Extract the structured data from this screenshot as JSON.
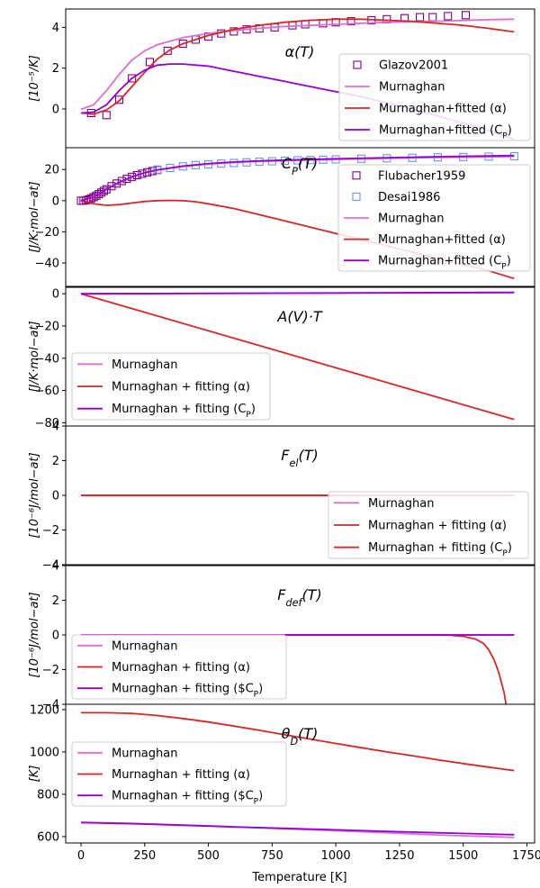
{
  "xlabel": "Temperature [K]",
  "x_ticks": [
    0,
    250,
    500,
    750,
    1000,
    1250,
    1500,
    1750
  ],
  "chart_data": [
    {
      "type": "line",
      "title": "α(T)",
      "ylabel": "[10⁻⁵/K]",
      "xlim": [
        -60,
        1780
      ],
      "ylim": [
        -1.9,
        4.9
      ],
      "y_ticks": [
        0,
        2,
        4
      ],
      "legend_position": "lower-right",
      "legend": [
        "Glazov2001",
        "Murnaghan",
        "Murnaghan+fitted (α)",
        "Murnaghan+fitted (C_P)"
      ],
      "series": [
        {
          "name": "Glazov2001",
          "kind": "markers",
          "color": "#800080",
          "x": [
            40,
            100,
            150,
            200,
            270,
            340,
            400,
            450,
            500,
            550,
            600,
            650,
            700,
            760,
            830,
            880,
            950,
            1000,
            1060,
            1140,
            1200,
            1270,
            1330,
            1380,
            1440,
            1510
          ],
          "y": [
            -0.2,
            -0.3,
            0.45,
            1.5,
            2.3,
            2.85,
            3.2,
            3.4,
            3.55,
            3.7,
            3.8,
            3.9,
            3.95,
            4.0,
            4.1,
            4.15,
            4.2,
            4.25,
            4.3,
            4.35,
            4.4,
            4.45,
            4.5,
            4.5,
            4.55,
            4.6
          ]
        },
        {
          "name": "Murnaghan",
          "kind": "line",
          "color": "#da70d6",
          "x": [
            0,
            50,
            100,
            150,
            200,
            250,
            300,
            400,
            500,
            600,
            700,
            800,
            1000,
            1200,
            1400,
            1600,
            1700
          ],
          "y": [
            -0.02,
            0.2,
            0.9,
            1.7,
            2.4,
            2.85,
            3.15,
            3.5,
            3.7,
            3.85,
            3.95,
            4.05,
            4.15,
            4.25,
            4.3,
            4.38,
            4.4
          ]
        },
        {
          "name": "Murnaghan+fitted (α)",
          "kind": "line",
          "color": "#d62728",
          "x": [
            0,
            50,
            100,
            150,
            200,
            250,
            300,
            350,
            400,
            500,
            600,
            700,
            800,
            900,
            1000,
            1100,
            1200,
            1300,
            1400,
            1500,
            1600,
            1700
          ],
          "y": [
            -0.2,
            -0.25,
            -0.05,
            0.4,
            1.1,
            1.8,
            2.45,
            2.9,
            3.2,
            3.6,
            3.9,
            4.1,
            4.25,
            4.35,
            4.4,
            4.4,
            4.35,
            4.3,
            4.2,
            4.1,
            3.95,
            3.78
          ]
        },
        {
          "name": "Murnaghan+fitted (C_P)",
          "kind": "line",
          "color": "#9400d3",
          "x": [
            0,
            50,
            100,
            150,
            200,
            250,
            300,
            350,
            400,
            500,
            600,
            700,
            800,
            900,
            1000,
            1100,
            1200,
            1300,
            1400,
            1500,
            1600,
            1700
          ],
          "y": [
            -0.2,
            -0.15,
            0.2,
            0.9,
            1.5,
            1.9,
            2.15,
            2.2,
            2.2,
            2.1,
            1.85,
            1.6,
            1.35,
            1.1,
            0.85,
            0.6,
            0.3,
            0,
            -0.35,
            -0.7,
            -1.05,
            -1.5
          ]
        }
      ]
    },
    {
      "type": "line",
      "title": "C_P(T)",
      "ylabel": "[J/K·mol−at]",
      "xlim": [
        -60,
        1780
      ],
      "ylim": [
        -55,
        34
      ],
      "y_ticks": [
        -40,
        -20,
        0,
        20
      ],
      "legend_position": "right",
      "legend": [
        "Flubacher1959",
        "Desai1986",
        "Murnaghan",
        "Murnaghan+fitted (α)",
        "Murnaghan+fitted (C_P)"
      ],
      "series": [
        {
          "name": "Flubacher1959",
          "kind": "markers",
          "color": "#800080",
          "x": [
            0,
            10,
            20,
            30,
            40,
            50,
            60,
            70,
            80,
            90,
            100,
            120,
            140,
            160,
            180,
            200,
            220,
            240,
            260,
            280,
            300
          ],
          "y": [
            0,
            0,
            0.3,
            0.8,
            1.5,
            2.3,
            3.2,
            4.2,
            5.2,
            6.3,
            7.3,
            9.3,
            11,
            12.6,
            14,
            15.3,
            16.4,
            17.3,
            18.2,
            19,
            19.7
          ]
        },
        {
          "name": "Desai1986",
          "kind": "markers",
          "color": "#6495ed",
          "x": [
            300,
            350,
            400,
            450,
            500,
            550,
            600,
            650,
            700,
            750,
            800,
            850,
            900,
            950,
            1000,
            1100,
            1200,
            1300,
            1400,
            1500,
            1600,
            1700
          ],
          "y": [
            20,
            21,
            22,
            22.8,
            23.3,
            23.8,
            24.2,
            24.6,
            25,
            25.3,
            25.6,
            25.9,
            26.1,
            26.3,
            26.5,
            26.9,
            27.2,
            27.5,
            27.8,
            28,
            28.3,
            28.5
          ]
        },
        {
          "name": "Murnaghan",
          "kind": "line",
          "color": "#da70d6",
          "x": [
            0,
            50,
            100,
            150,
            200,
            250,
            300,
            400,
            500,
            600,
            700,
            800,
            1000,
            1200,
            1400,
            1600,
            1700
          ],
          "y": [
            0,
            2.3,
            7.3,
            11.8,
            15.3,
            18,
            19.8,
            22,
            23.5,
            24.5,
            25.2,
            25.7,
            26.5,
            27.2,
            27.7,
            28.1,
            28.3
          ]
        },
        {
          "name": "Murnaghan+fitted (α)",
          "kind": "line",
          "color": "#d62728",
          "x": [
            0,
            50,
            100,
            150,
            200,
            250,
            300,
            350,
            400,
            450,
            500,
            600,
            700,
            800,
            900,
            1000,
            1100,
            1200,
            1300,
            1400,
            1500,
            1600,
            1700
          ],
          "y": [
            0,
            -2,
            -3,
            -2.5,
            -1.5,
            -0.5,
            0,
            0.2,
            0,
            -0.7,
            -2,
            -5,
            -9,
            -13,
            -17,
            -21,
            -25,
            -29,
            -33,
            -37,
            -41,
            -45,
            -50
          ]
        },
        {
          "name": "Murnaghan+fitted (C_P)",
          "kind": "line",
          "color": "#9400d3",
          "x": [
            0,
            50,
            100,
            150,
            200,
            250,
            300,
            400,
            500,
            600,
            700,
            800,
            1000,
            1200,
            1400,
            1600,
            1700
          ],
          "y": [
            0,
            2.3,
            7.3,
            11.8,
            15.3,
            18,
            19.8,
            22.2,
            23.8,
            24.8,
            25.5,
            26,
            26.9,
            27.6,
            28.2,
            28.7,
            29
          ]
        }
      ]
    },
    {
      "type": "line",
      "title": "A(V)·T",
      "ylabel": "[J/K·mol−at]",
      "xlim": [
        -60,
        1780
      ],
      "ylim": [
        -82,
        4
      ],
      "y_ticks": [
        -80,
        -60,
        -40,
        -20,
        0
      ],
      "legend_position": "lower-left",
      "legend": [
        "Murnaghan",
        "Murnaghan + fitting (α)",
        "Murnaghan + fitting (C_P)"
      ],
      "series": [
        {
          "name": "Murnaghan",
          "kind": "line",
          "color": "#da70d6",
          "x": [
            0,
            1700
          ],
          "y": [
            0,
            0.6
          ]
        },
        {
          "name": "Murnaghan + fitting (α)",
          "kind": "line",
          "color": "#d62728",
          "x": [
            0,
            1700
          ],
          "y": [
            0,
            -78
          ]
        },
        {
          "name": "Murnaghan + fitting (C_P)",
          "kind": "line",
          "color": "#9400d3",
          "x": [
            0,
            1700
          ],
          "y": [
            0,
            0.9
          ]
        }
      ]
    },
    {
      "type": "line",
      "title": "F_el(T)",
      "ylabel": "[10⁻⁶J/mol−at]",
      "xlim": [
        -60,
        1780
      ],
      "ylim": [
        -4,
        4
      ],
      "y_ticks": [
        -4,
        -2,
        0,
        2,
        4
      ],
      "legend_position": "lower-right",
      "legend": [
        "Murnaghan",
        "Murnaghan + fitting (α)",
        "Murnaghan + fitting (C_P)"
      ],
      "series": [
        {
          "name": "Murnaghan",
          "kind": "line",
          "color": "#da70d6",
          "x": [
            0,
            1700
          ],
          "y": [
            0,
            0
          ]
        },
        {
          "name": "Murnaghan + fitting (α)",
          "kind": "line",
          "color": "#d62728",
          "x": [
            0,
            1700
          ],
          "y": [
            0,
            0
          ]
        },
        {
          "name": "Murnaghan + fitting (C_P)",
          "kind": "line",
          "color": "#e32626",
          "x": [
            0,
            1700
          ],
          "y": [
            0,
            0
          ]
        }
      ]
    },
    {
      "type": "line",
      "title": "F_def(T)",
      "ylabel": "[10⁻⁶J/mol−at]",
      "xlim": [
        -60,
        1780
      ],
      "ylim": [
        -4,
        4
      ],
      "y_ticks": [
        -4,
        -2,
        0,
        2,
        4
      ],
      "legend_position": "lower-left",
      "legend": [
        "Murnaghan",
        "Murnaghan + fitting (α)",
        "Murnaghan + fitting ($C_P)"
      ],
      "series": [
        {
          "name": "Murnaghan",
          "kind": "line",
          "color": "#da70d6",
          "x": [
            0,
            1700
          ],
          "y": [
            0,
            0
          ]
        },
        {
          "name": "Murnaghan + fitting (α)",
          "kind": "line",
          "color": "#d62728",
          "x": [
            0,
            1400,
            1450,
            1500,
            1550,
            1580,
            1600,
            1620,
            1640,
            1660,
            1670
          ],
          "y": [
            0,
            0,
            -0.02,
            -0.08,
            -0.25,
            -0.5,
            -0.85,
            -1.4,
            -2.2,
            -3.3,
            -4.2
          ]
        },
        {
          "name": "Murnaghan + fitting ($C_P)",
          "kind": "line",
          "color": "#9400d3",
          "x": [
            0,
            1700
          ],
          "y": [
            0,
            0
          ]
        }
      ]
    },
    {
      "type": "line",
      "title": "θ_D(T)",
      "ylabel": "[K]",
      "xlim": [
        -60,
        1780
      ],
      "ylim": [
        570,
        1225
      ],
      "y_ticks": [
        600,
        800,
        1000,
        1200
      ],
      "legend_position": "left",
      "legend": [
        "Murnaghan",
        "Murnaghan + fitting (α)",
        "Murnaghan + fitting ($C_P)"
      ],
      "series": [
        {
          "name": "Murnaghan",
          "kind": "line",
          "color": "#da70d6",
          "x": [
            0,
            200,
            400,
            600,
            800,
            1000,
            1200,
            1400,
            1600,
            1700
          ],
          "y": [
            668,
            663,
            655,
            646,
            637,
            628,
            618,
            608,
            600,
            596
          ]
        },
        {
          "name": "Murnaghan + fitting (α)",
          "kind": "line",
          "color": "#d62728",
          "x": [
            0,
            100,
            200,
            300,
            400,
            500,
            600,
            700,
            800,
            900,
            1000,
            1100,
            1200,
            1300,
            1400,
            1500,
            1600,
            1700
          ],
          "y": [
            1185,
            1185,
            1182,
            1172,
            1158,
            1141,
            1122,
            1102,
            1081,
            1061,
            1040,
            1020,
            1000,
            982,
            963,
            945,
            928,
            912
          ]
        },
        {
          "name": "Murnaghan + fitting ($C_P)",
          "kind": "line",
          "color": "#9400d3",
          "x": [
            0,
            200,
            400,
            600,
            800,
            1000,
            1200,
            1400,
            1600,
            1700
          ],
          "y": [
            666,
            661,
            654,
            646,
            639,
            632,
            625,
            618,
            612,
            609
          ]
        }
      ]
    }
  ]
}
